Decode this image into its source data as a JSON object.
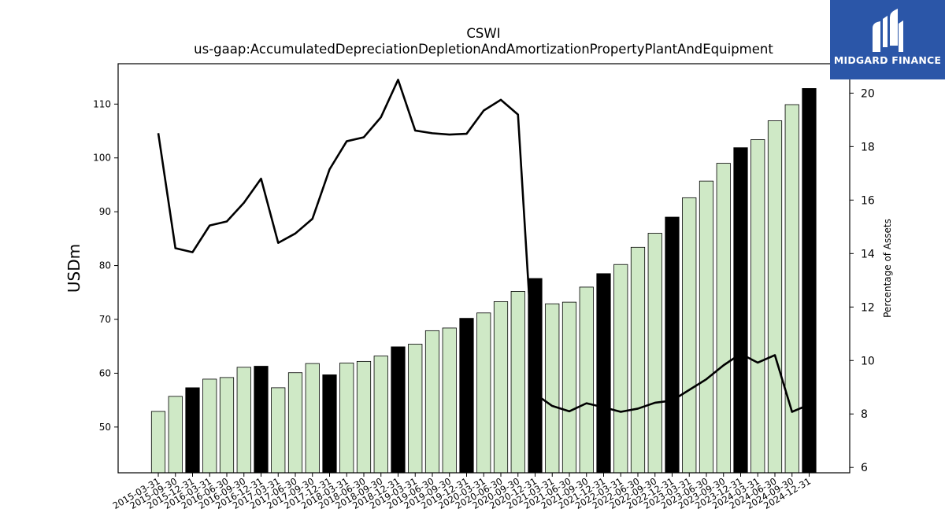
{
  "chart_data": {
    "type": "bar",
    "title": "CSWI",
    "subtitle": "us-gaap:AccumulatedDepreciationDepletionAndAmortizationPropertyPlantAndEquipment",
    "ylabel": "USDm",
    "ylabel_right": "Percentage of Assets",
    "ylim": [
      41.5,
      117.5
    ],
    "ylim_right": [
      5.8,
      21.1
    ],
    "yticks": [
      50,
      60,
      70,
      80,
      90,
      100,
      110
    ],
    "yticks_right": [
      6,
      8,
      10,
      12,
      14,
      16,
      18,
      20
    ],
    "categories": [
      "2015-03-31",
      "2015-09-30",
      "2015-12-31",
      "2016-03-31",
      "2016-06-30",
      "2016-09-30",
      "2016-12-31",
      "2017-03-31",
      "2017-06-30",
      "2017-09-30",
      "2017-12-31",
      "2018-03-31",
      "2018-06-30",
      "2018-09-30",
      "2018-12-31",
      "2019-03-31",
      "2019-06-30",
      "2019-09-30",
      "2019-12-31",
      "2020-03-31",
      "2020-06-30",
      "2020-09-30",
      "2020-12-31",
      "2021-03-31",
      "2021-06-30",
      "2021-09-30",
      "2021-12-31",
      "2022-03-31",
      "2022-06-30",
      "2022-09-30",
      "2022-12-31",
      "2023-03-31",
      "2023-06-30",
      "2023-09-30",
      "2023-12-31",
      "2024-03-31",
      "2024-06-30",
      "2024-09-30",
      "2024-12-31"
    ],
    "series": [
      {
        "kind": "bar",
        "values": [
          52.9,
          55.7,
          57.3,
          58.9,
          59.2,
          61.1,
          61.3,
          57.3,
          60.1,
          61.8,
          59.7,
          61.9,
          62.2,
          63.2,
          64.9,
          65.4,
          67.9,
          68.4,
          70.2,
          71.2,
          73.3,
          75.2,
          77.6,
          72.9,
          73.2,
          76.0,
          78.5,
          80.2,
          83.4,
          86.0,
          89.0,
          92.6,
          95.7,
          99.0,
          101.9,
          103.4,
          106.9,
          109.9,
          112.9
        ]
      },
      {
        "kind": "line",
        "axis": "right",
        "values": [
          18.5,
          14.2,
          14.05,
          15.05,
          15.2,
          15.9,
          16.8,
          14.4,
          14.75,
          15.3,
          17.15,
          18.2,
          18.35,
          19.1,
          20.5,
          18.6,
          18.5,
          18.45,
          18.48,
          19.35,
          19.75,
          19.2,
          8.75,
          8.3,
          8.1,
          8.4,
          8.25,
          8.08,
          8.2,
          8.42,
          8.5,
          8.9,
          9.3,
          9.82,
          10.25,
          9.92,
          10.2,
          8.08,
          8.35
        ]
      }
    ],
    "bar_colors": {
      "regular": "#cfe9c6",
      "year_end": "#000000",
      "edge": "#000000"
    },
    "year_end_indices": [
      2,
      6,
      10,
      14,
      18,
      22,
      26,
      30,
      34,
      38
    ],
    "line_color": "#000000",
    "legend": "none",
    "grid": false
  },
  "logo": {
    "text": "MIDGARD FINANCE",
    "background": "#2b56a8"
  }
}
